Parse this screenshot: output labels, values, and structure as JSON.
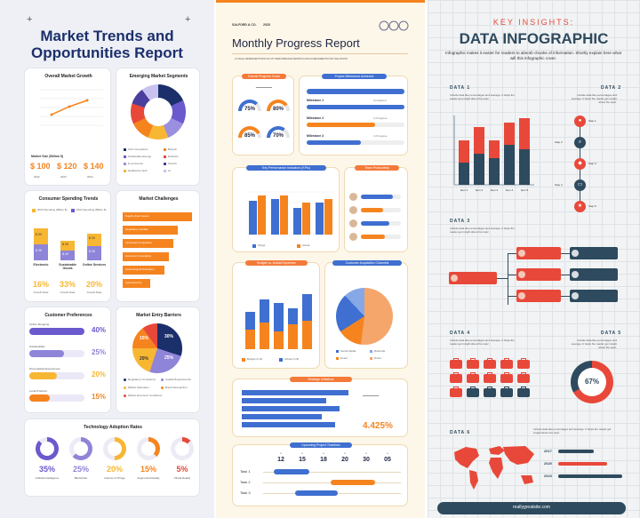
{
  "colors": {
    "navy": "#1b2f6b",
    "orange": "#f5841f",
    "purple": "#6a5acd",
    "yellow": "#f7b733",
    "blue": "#3f6fd0",
    "red": "#e8483a",
    "slate": "#2e4a5e",
    "cream": "#fdf7ea"
  },
  "left": {
    "title_line1": "Market Trends and",
    "title_line2": "Opportunities Report",
    "growth": {
      "title": "Overall Market Growth",
      "size_label": "Market Size (Billion $)",
      "values": [
        "$ 100",
        "$ 120",
        "$ 140"
      ],
      "years": [
        "2022",
        "2023",
        "2024"
      ]
    },
    "segments": {
      "title": "Emerging Market Segments",
      "legend": [
        "Tech Innovations",
        "Sustainable Energy",
        "E-commerce",
        "Healthcare Tech",
        "Biotech",
        "Robotics",
        "Fintech",
        "AI"
      ]
    },
    "spending": {
      "title": "Consumer Spending Trends",
      "legend": [
        "2023 Spending (Billion $)",
        "2024 Spending (Billion $)"
      ],
      "categories": [
        "Electronic",
        "Sustainable Goods",
        "Online Services"
      ],
      "pcts": [
        "16%",
        "33%",
        "20%"
      ],
      "rate_label": "Growth Rate",
      "bar_vals": [
        "$ 30",
        "$ 25",
        "$ 20",
        "$ 35",
        "$ 40",
        "$ 25"
      ]
    },
    "challenges": {
      "title": "Market Challenges",
      "items": [
        "Supply chain issues",
        "Regulatory Hurdles",
        "Increased Competition",
        "Economic Uncertainty",
        "Technological Disruption",
        "Cybersecurity"
      ],
      "values": [
        75,
        60,
        55,
        50,
        45,
        30
      ]
    },
    "preferences": {
      "title": "Customer Preferences",
      "items": [
        {
          "label": "Online Shopping",
          "pct": "40%",
          "val": 40
        },
        {
          "label": "Sustainability",
          "pct": "25%",
          "val": 25
        },
        {
          "label": "Personalized Experiences",
          "pct": "20%",
          "val": 20
        },
        {
          "label": "Local Products",
          "pct": "15%",
          "val": 15
        }
      ]
    },
    "barriers": {
      "title": "Market Entry Barriers",
      "pcts": [
        "30%",
        "25%",
        "20%",
        "15%"
      ],
      "legend": [
        "Regulatory Compliance",
        "Capital Requirements",
        "Market Saturation",
        "Brand Recognition",
        "Market Economic Conditions"
      ]
    },
    "adoption": {
      "title": "Technology Adoption Rates",
      "items": [
        {
          "pct": "35%",
          "label": "Artificial Intelligence",
          "val": 35
        },
        {
          "pct": "25%",
          "label": "Blockchain",
          "val": 25
        },
        {
          "pct": "20%",
          "label": "Internet of Things",
          "val": 20
        },
        {
          "pct": "15%",
          "label": "Augmented Reality",
          "val": 15
        },
        {
          "pct": "5%",
          "label": "Virtual Reality",
          "val": 5
        }
      ]
    }
  },
  "middle": {
    "brand": "SALFORD & CO.",
    "year": "2025",
    "title": "Monthly Progress Report",
    "subtitle": "A VISUAL REPRESENTATION OF MY PERFORMANCE METRICS AND ACHIEVEMENTS FOR THE MONTH",
    "goals": {
      "title": "Overall Progress Goals",
      "pcts": [
        "75%",
        "80%",
        "85%",
        "70%"
      ]
    },
    "milestones": {
      "title": "Project Milestones Achieved",
      "rows": [
        {
          "label": "Milestone 1",
          "status": "Completed",
          "val": 100
        },
        {
          "label": "Milestone 2",
          "status": "In Progress",
          "val": 70
        },
        {
          "label": "Milestone 3",
          "status": "In Progress",
          "val": 55
        }
      ]
    },
    "kpi": {
      "title": "Key Performance Indicators (KPIs)",
      "legend": [
        "Target",
        "Actual"
      ]
    },
    "team": {
      "title": "Team Productivity"
    },
    "budget": {
      "title": "Budget vs. Actual Expenses",
      "legend": [
        "Budget (in $)",
        "Actual (in $)"
      ]
    },
    "acquisition": {
      "title": "Customer Acquisition Channels",
      "legend": [
        "Social Media",
        "Referrals",
        "Email",
        "Direct"
      ]
    },
    "strategic": {
      "title": "Strategic Initiatives",
      "pct": "4.425%"
    },
    "timeline": {
      "title": "Upcoming Project Timelines",
      "dates": [
        "12",
        "15",
        "18",
        "20",
        "30",
        "05"
      ],
      "tasks": [
        "Task 1",
        "Task 2",
        "Task 3"
      ]
    }
  },
  "right": {
    "kicker": "KEY INSIGHTS:",
    "title": "DATA INFOGRAPHIC",
    "intro": "Infographic makes it easier for readers to absorb chunks of information. Shortly explain here what will this infographic cover.",
    "sections": [
      "DATA 1",
      "DATA 2",
      "DATA 3",
      "DATA 4",
      "DATA 5",
      "DATA 6"
    ],
    "steps": [
      "Step 1",
      "Step 2",
      "Step 3",
      "Step 4",
      "Step 5"
    ],
    "items": [
      "Item 1",
      "Item 2",
      "Item 3",
      "Item 4",
      "Item 5"
    ],
    "donut_pct": "67%",
    "years": [
      "2017",
      "2020",
      "2023"
    ],
    "footer": "reallygreatsite.com",
    "blurb": "Include data like percentages and average. It helps the reader get insight about the topic."
  }
}
